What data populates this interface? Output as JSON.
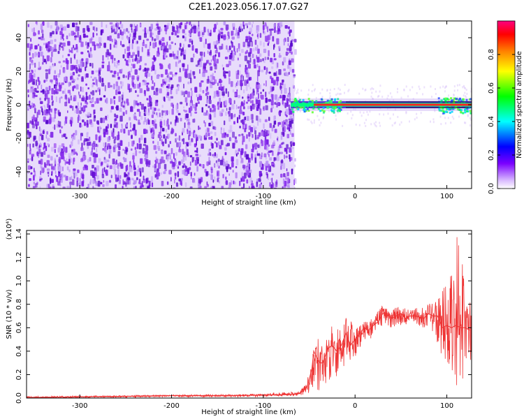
{
  "title": "C2E1.2023.056.17.07.G27",
  "colors": {
    "snr_line": "#ee3333",
    "axis": "#000000",
    "noise_purple": "#7a1ee6",
    "signal_red": "#ff2020"
  },
  "chart_data": [
    {
      "type": "heatmap",
      "xlabel": "Height of straight line (km)",
      "ylabel": "Frequency (Hz)",
      "xlim": [
        -358,
        127
      ],
      "ylim": [
        -50,
        50
      ],
      "xticks": [
        -300,
        -200,
        -100,
        0,
        100
      ],
      "xtick_labels": [
        "-300",
        "-200",
        "-100",
        "0",
        "100"
      ],
      "yticks": [
        -40,
        -20,
        0,
        20,
        40
      ],
      "ytick_labels": [
        "-40",
        "-20",
        "0",
        "20",
        "40"
      ],
      "noise_region_x": [
        -358,
        -66
      ],
      "signal_region_x": [
        -70,
        127
      ],
      "signal_frequency": 0,
      "colorbar": {
        "label": "Normalized spectral amplitude",
        "range": [
          0,
          1
        ],
        "ticks": [
          0.0,
          0.2,
          0.4,
          0.6,
          0.8
        ],
        "tick_labels": [
          "0.0",
          "0.2",
          "0.4",
          "0.6",
          "0.8"
        ],
        "colormap": [
          "#ffffff",
          "#7a00ff",
          "#0000ff",
          "#00ffff",
          "#00ff00",
          "#ffff00",
          "#ff8000",
          "#ff0000",
          "#ff0080"
        ]
      },
      "grid": false
    },
    {
      "type": "line",
      "xlabel": "Height of straight line (km)",
      "ylabel": "SNR (10 * v/v)",
      "y_multiplier": "(x10⁴)",
      "xlim": [
        -358,
        127
      ],
      "ylim": [
        0,
        1.43
      ],
      "xticks": [
        -300,
        -200,
        -100,
        0,
        100
      ],
      "xtick_labels": [
        "-300",
        "-200",
        "-100",
        "0",
        "100"
      ],
      "yticks": [
        0.0,
        0.2,
        0.4,
        0.6,
        0.8,
        1.0,
        1.2,
        1.4
      ],
      "ytick_labels": [
        "0.0",
        "0.2",
        "0.4",
        "0.6",
        "0.8",
        "1.0",
        "1.2",
        "1.4"
      ],
      "series": [
        {
          "x": [
            -358,
            -300,
            -250,
            -200,
            -150,
            -100,
            -70,
            -60,
            -52,
            -47,
            -45,
            -42,
            -38,
            -35,
            -30,
            -25,
            -20,
            -15,
            -10,
            -5,
            0,
            5,
            10,
            15,
            20,
            25,
            30,
            35,
            40,
            45,
            50,
            55,
            60,
            65,
            70,
            75,
            80,
            85,
            90,
            95,
            100,
            105,
            110,
            115,
            120,
            125
          ],
          "y": [
            0.005,
            0.01,
            0.015,
            0.02,
            0.02,
            0.025,
            0.03,
            0.04,
            0.1,
            0.25,
            0.4,
            0.35,
            0.3,
            0.3,
            0.42,
            0.45,
            0.4,
            0.45,
            0.55,
            0.45,
            0.5,
            0.55,
            0.6,
            0.58,
            0.62,
            0.65,
            0.72,
            0.72,
            0.68,
            0.7,
            0.72,
            0.68,
            0.7,
            0.7,
            0.69,
            0.68,
            0.72,
            0.7,
            0.7,
            0.6,
            0.62,
            0.6,
            0.62,
            0.6,
            0.6,
            0.58
          ],
          "band_x": [
            -358,
            -100,
            -60,
            -52,
            -45,
            -38,
            -30,
            -20,
            -10,
            0,
            10,
            20,
            30,
            40,
            50,
            60,
            70,
            80,
            90,
            95,
            100,
            105,
            110,
            115,
            120,
            125
          ],
          "band_low": [
            0.0,
            0.01,
            0.02,
            0.03,
            0.1,
            0.05,
            0.15,
            0.15,
            0.3,
            0.35,
            0.48,
            0.52,
            0.62,
            0.6,
            0.62,
            0.62,
            0.6,
            0.6,
            0.45,
            0.35,
            0.25,
            0.2,
            0.1,
            0.08,
            0.12,
            0.2
          ],
          "band_high": [
            0.015,
            0.035,
            0.06,
            0.15,
            0.55,
            0.5,
            0.6,
            0.65,
            0.7,
            0.62,
            0.65,
            0.7,
            0.8,
            0.75,
            0.8,
            0.75,
            0.78,
            0.8,
            0.85,
            0.95,
            1.05,
            1.2,
            1.42,
            1.25,
            1.1,
            0.9
          ]
        }
      ],
      "grid": false
    }
  ]
}
